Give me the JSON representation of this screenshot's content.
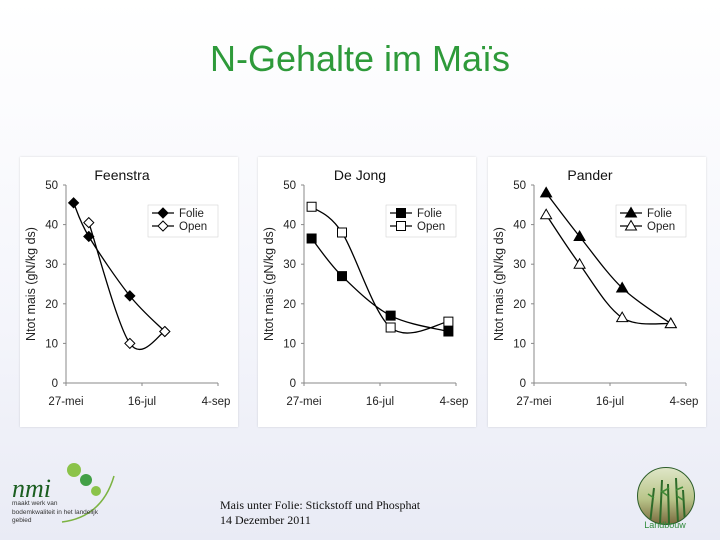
{
  "slide": {
    "title": "N-Gehalte im Maïs",
    "caption_line1": "Mais unter Folie: Stickstoff und Phosphat",
    "caption_line2": "14 Dezember 2011",
    "logo_text": "nmi",
    "logo_tagline": "maakt werk van bodemkwaliteit in het landelijk gebied",
    "badge_label": "Landbouw",
    "colors": {
      "title": "#2e9a3a",
      "series": "#000000"
    }
  },
  "chart_data": [
    {
      "type": "line",
      "title": "Feenstra",
      "ylabel": "Ntot mais (gN/kg ds)",
      "xlabel": "",
      "yticks": [
        0,
        10,
        20,
        30,
        40,
        50
      ],
      "ylim": [
        0,
        50
      ],
      "x_ticks": [
        "27-mei",
        "16-jul",
        "4-sep"
      ],
      "x_range_days": [
        0,
        100
      ],
      "legend_position": "top-right",
      "series": [
        {
          "name": "Folie",
          "marker": "diamond-filled",
          "points": [
            [
              5,
              45.5
            ],
            [
              15,
              37
            ],
            [
              42,
              22
            ],
            [
              65,
              13
            ]
          ]
        },
        {
          "name": "Open",
          "marker": "diamond-open",
          "points": [
            [
              15,
              40.5
            ],
            [
              42,
              10
            ],
            [
              65,
              13
            ]
          ]
        }
      ]
    },
    {
      "type": "line",
      "title": "De Jong",
      "ylabel": "Ntot mais (gN/kg ds)",
      "xlabel": "",
      "yticks": [
        0,
        10,
        20,
        30,
        40,
        50
      ],
      "ylim": [
        0,
        50
      ],
      "x_ticks": [
        "27-mei",
        "16-jul",
        "4-sep"
      ],
      "x_range_days": [
        0,
        100
      ],
      "legend_position": "top-right",
      "series": [
        {
          "name": "Folie",
          "marker": "square-filled",
          "points": [
            [
              5,
              36.5
            ],
            [
              25,
              27
            ],
            [
              57,
              17
            ],
            [
              95,
              13
            ]
          ]
        },
        {
          "name": "Open",
          "marker": "square-open",
          "points": [
            [
              5,
              44.5
            ],
            [
              25,
              38
            ],
            [
              57,
              14
            ],
            [
              95,
              15.5
            ]
          ]
        }
      ]
    },
    {
      "type": "line",
      "title": "Pander",
      "ylabel": "Ntot mais (gN/kg ds)",
      "xlabel": "",
      "yticks": [
        0,
        10,
        20,
        30,
        40,
        50
      ],
      "ylim": [
        0,
        50
      ],
      "x_ticks": [
        "27-mei",
        "16-jul",
        "4-sep"
      ],
      "x_range_days": [
        0,
        100
      ],
      "legend_position": "top-right",
      "series": [
        {
          "name": "Folie",
          "marker": "triangle-filled",
          "points": [
            [
              8,
              48
            ],
            [
              30,
              37
            ],
            [
              58,
              24
            ],
            [
              90,
              15
            ]
          ]
        },
        {
          "name": "Open",
          "marker": "triangle-open",
          "points": [
            [
              8,
              42.5
            ],
            [
              30,
              30
            ],
            [
              58,
              16.5
            ],
            [
              90,
              15
            ]
          ]
        }
      ]
    }
  ]
}
